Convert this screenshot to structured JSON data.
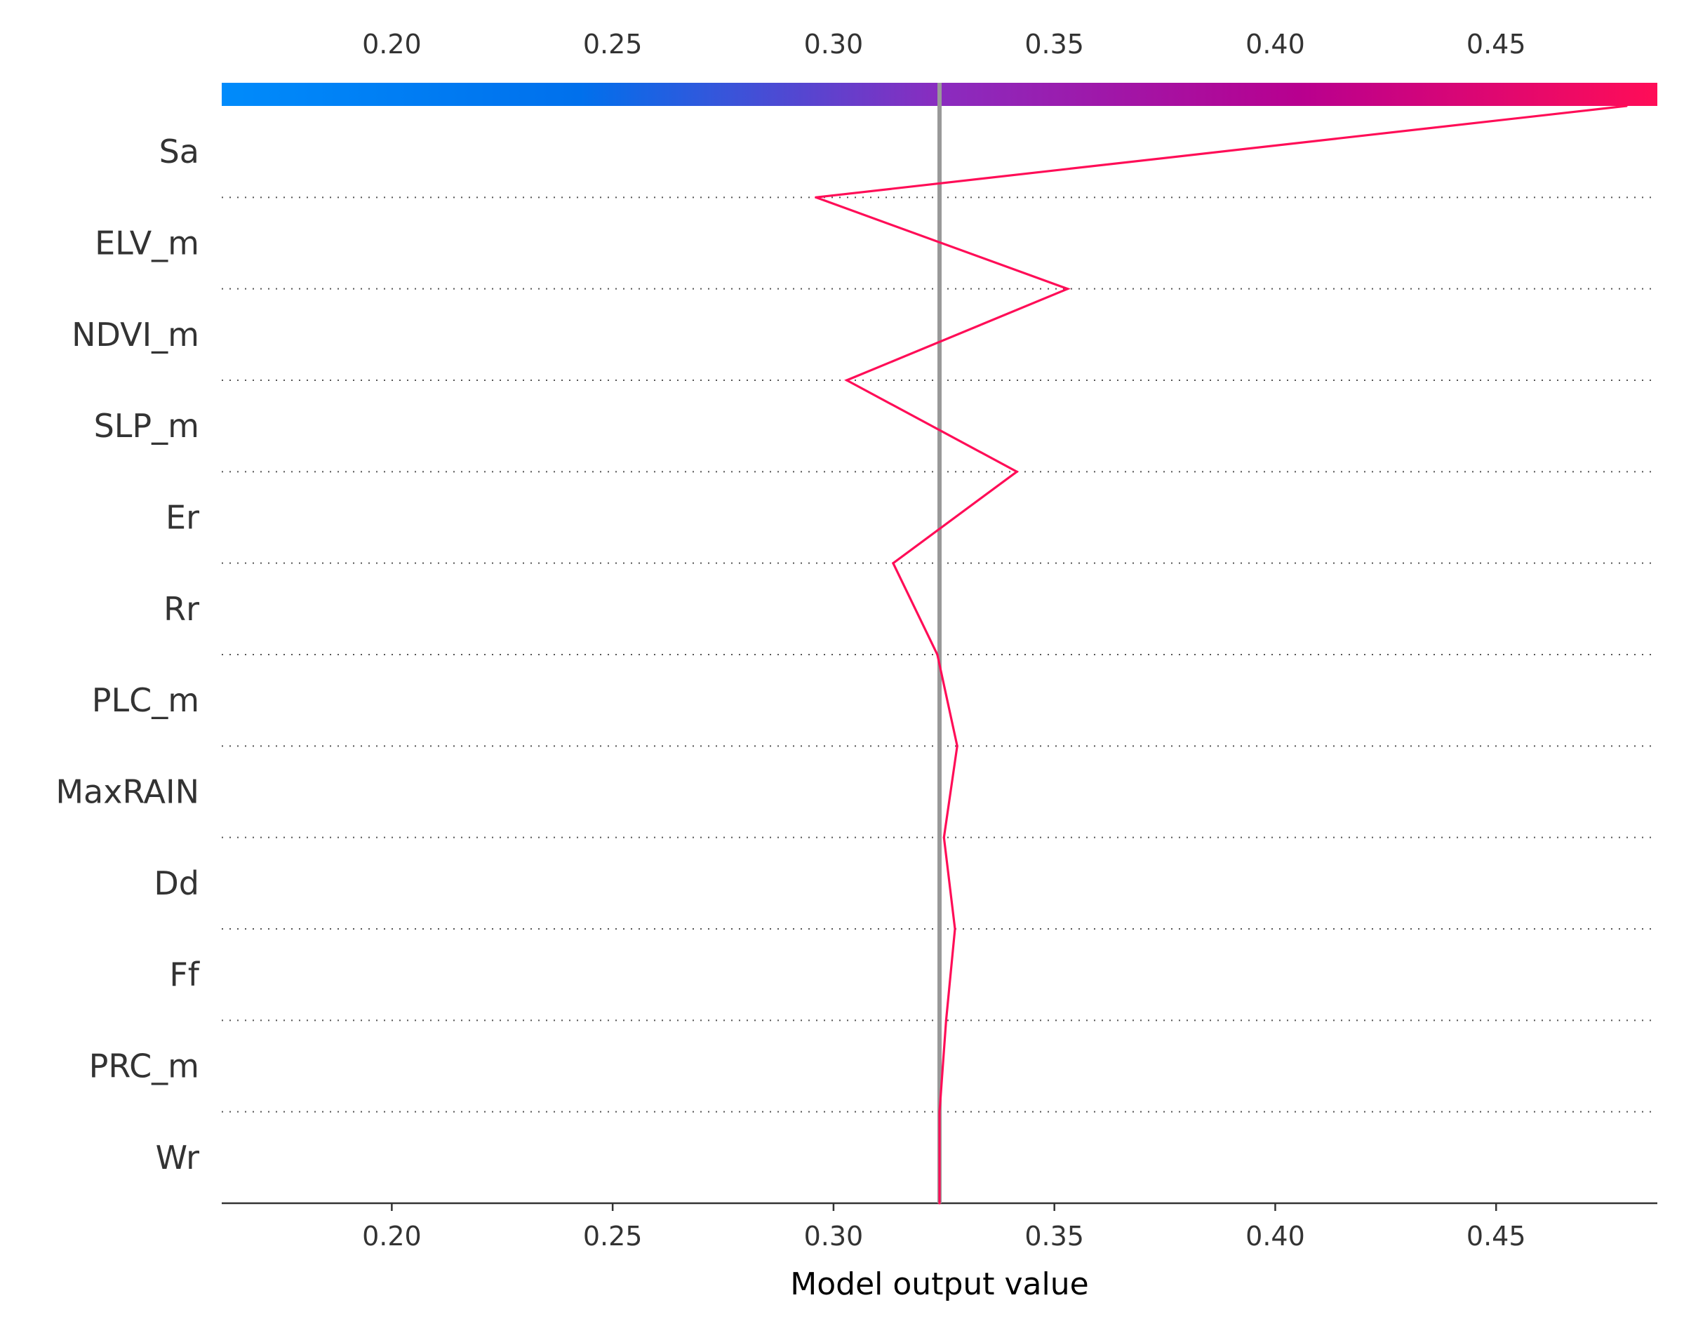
{
  "chart_data": {
    "type": "line",
    "subtype": "shap-decision-plot",
    "xlabel": "Model output value",
    "xlim": [
      0.1615,
      0.4865
    ],
    "x_ticks": [
      0.2,
      0.25,
      0.3,
      0.35,
      0.4,
      0.45
    ],
    "x_tick_labels": [
      "0.20",
      "0.25",
      "0.30",
      "0.35",
      "0.40",
      "0.45"
    ],
    "base_value": 0.324,
    "features": [
      "Sa",
      "ELV_m",
      "NDVI_m",
      "SLP_m",
      "Er",
      "Rr",
      "PLC_m",
      "MaxRAIN",
      "Dd",
      "Ff",
      "PRC_m",
      "Wr"
    ],
    "path": [
      0.4795,
      0.296,
      0.353,
      0.303,
      0.3415,
      0.3135,
      0.3235,
      0.328,
      0.325,
      0.3275,
      0.3255,
      0.324
    ],
    "line_color": "#ff0d57",
    "base_line_color": "#999999",
    "colorbar": {
      "colors": [
        "#008bfb",
        "#0070ec",
        "#8a2cbf",
        "#b8008f",
        "#ff0d57"
      ],
      "range": [
        0.1615,
        0.4865
      ]
    }
  }
}
